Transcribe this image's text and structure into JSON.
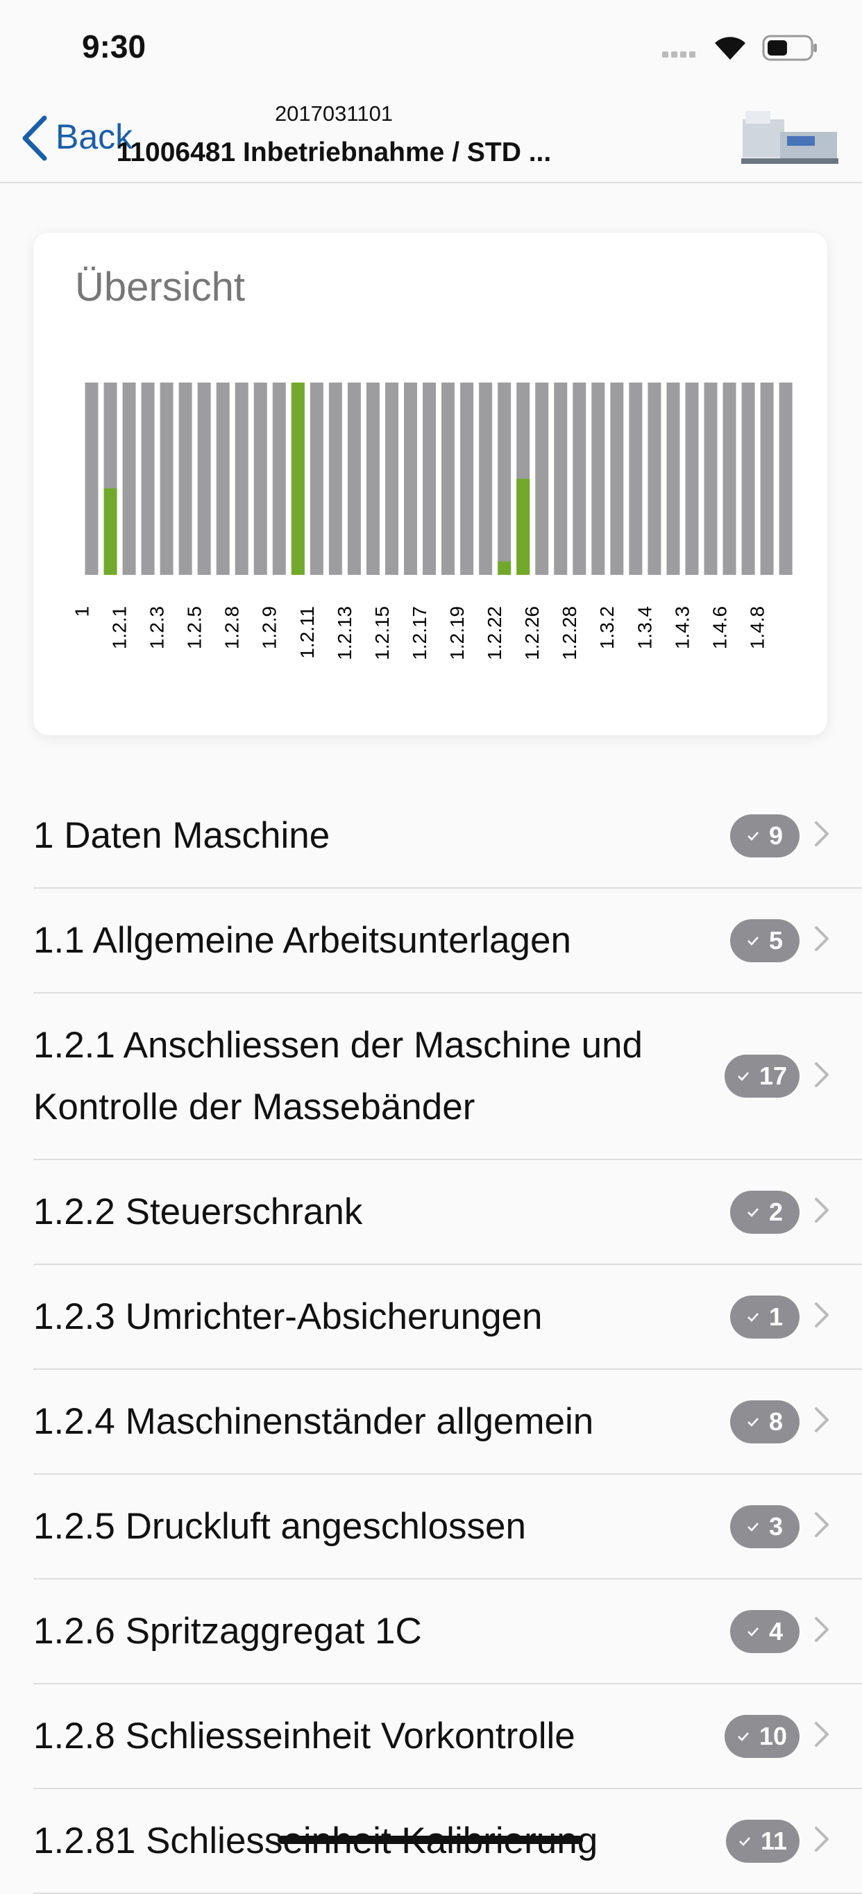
{
  "status_bar": {
    "time": "9:30"
  },
  "nav": {
    "back": "Back",
    "subtitle": "2017031101",
    "title": "11006481 Inbetriebnahme / STD ..."
  },
  "chart_data": {
    "type": "bar",
    "title": "Übersicht",
    "categories": [
      "1",
      null,
      "1.2.1",
      null,
      "1.2.3",
      null,
      "1.2.5",
      null,
      "1.2.8",
      null,
      "1.2.9",
      null,
      "1.2.11",
      null,
      "1.2.13",
      null,
      "1.2.15",
      null,
      "1.2.17",
      null,
      "1.2.19",
      null,
      "1.2.22",
      null,
      "1.2.26",
      null,
      "1.2.28",
      null,
      "1.3.2",
      null,
      "1.3.4",
      null,
      "1.4.3",
      null,
      "1.4.6",
      null,
      "1.4.8",
      null
    ],
    "values": [
      0,
      45,
      0,
      0,
      0,
      0,
      0,
      0,
      0,
      0,
      0,
      100,
      0,
      0,
      0,
      0,
      0,
      0,
      0,
      0,
      0,
      0,
      7,
      50,
      0,
      0,
      0,
      0,
      0,
      0,
      0,
      0,
      0,
      0,
      0,
      0,
      0,
      0
    ],
    "color": "#72a92d",
    "track_color": "#9d9d9f",
    "ylim": [
      0,
      100
    ]
  },
  "list": [
    {
      "title": "1 Daten Maschine",
      "count": "9"
    },
    {
      "title": "1.1 Allgemeine Arbeitsunterlagen",
      "count": "5"
    },
    {
      "title": "1.2.1 Anschliessen der Maschine und Kontrolle der Massebänder",
      "count": "17"
    },
    {
      "title": "1.2.2 Steuerschrank",
      "count": "2"
    },
    {
      "title": "1.2.3 Umrichter-Absicherungen",
      "count": "1"
    },
    {
      "title": "1.2.4 Maschinenständer allgemein",
      "count": "8"
    },
    {
      "title": "1.2.5 Druckluft angeschlossen",
      "count": "3"
    },
    {
      "title": "1.2.6 Spritzaggregat 1C",
      "count": "4"
    },
    {
      "title": "1.2.8 Schliesseinheit Vorkontrolle",
      "count": "10"
    },
    {
      "title": "1.2.81 Schliesseinheit Kalibrierung",
      "count": "11"
    }
  ]
}
